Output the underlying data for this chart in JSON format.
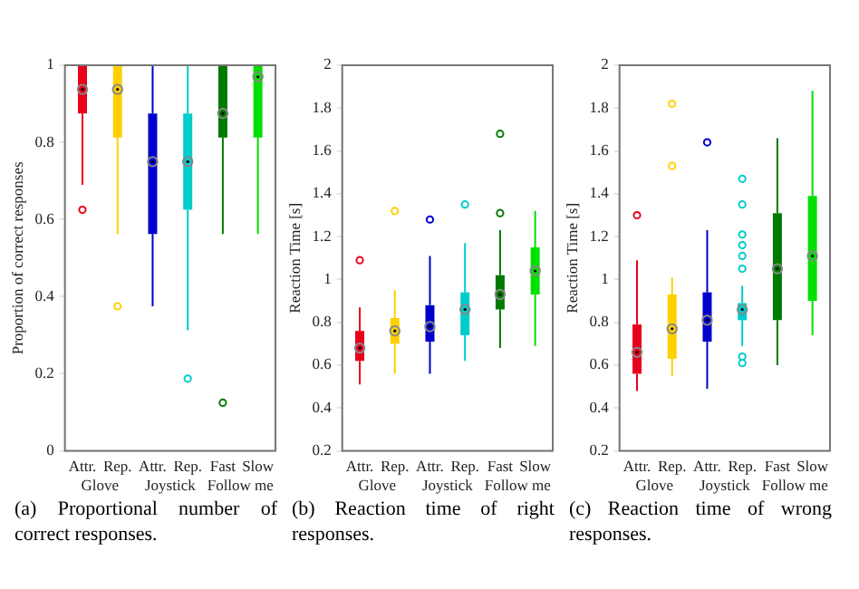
{
  "chart_data": [
    {
      "type": "box",
      "ylabel": "Proportion of correct responses",
      "categories": [
        "Attr.",
        "Rep.",
        "Attr.",
        "Rep.",
        "Fast",
        "Slow"
      ],
      "colors": [
        "#e8001c",
        "#ffd000",
        "#0000cc",
        "#00cccc",
        "#007a00",
        "#00e000"
      ],
      "ylim": [
        0,
        1
      ],
      "yticks": [
        0,
        0.2,
        0.4,
        0.6,
        0.8,
        1
      ],
      "grid": false,
      "boxes": [
        {
          "low": 0.69,
          "q1": 0.875,
          "median": 0.9375,
          "q3": 1,
          "high": 1,
          "outliers": [
            0.625
          ]
        },
        {
          "low": 0.5625,
          "q1": 0.8125,
          "median": 0.9375,
          "q3": 1,
          "high": 1,
          "outliers": [
            0.375
          ]
        },
        {
          "low": 0.375,
          "q1": 0.5625,
          "median": 0.75,
          "q3": 0.875,
          "high": 1
        },
        {
          "low": 0.3125,
          "q1": 0.625,
          "median": 0.75,
          "q3": 0.875,
          "high": 1,
          "outliers": [
            0.1875
          ]
        },
        {
          "low": 0.5625,
          "q1": 0.8125,
          "median": 0.875,
          "q3": 1,
          "high": 1,
          "outliers": [
            0.125
          ]
        },
        {
          "low": 0.5625,
          "q1": 0.8125,
          "median": 0.97,
          "q3": 1,
          "high": 1
        }
      ],
      "annotations": [
        "Glove",
        "Joystick",
        "Follow me",
        "(a) Proportional number of correct responses."
      ]
    },
    {
      "type": "box",
      "ylabel": "Reaction Time [s]",
      "categories": [
        "Attr.",
        "Rep.",
        "Attr.",
        "Rep.",
        "Fast",
        "Slow"
      ],
      "colors": [
        "#e8001c",
        "#ffd000",
        "#0000cc",
        "#00cccc",
        "#007a00",
        "#00e000"
      ],
      "ylim": [
        0.2,
        2
      ],
      "yticks": [
        0.2,
        0.4,
        0.6,
        0.8,
        1,
        1.2,
        1.4,
        1.6,
        1.8,
        2
      ],
      "grid": false,
      "boxes": [
        {
          "low": 0.51,
          "q1": 0.62,
          "median": 0.68,
          "q3": 0.76,
          "high": 0.87,
          "outliers": [
            1.09
          ]
        },
        {
          "low": 0.56,
          "q1": 0.7,
          "median": 0.76,
          "q3": 0.82,
          "high": 0.95,
          "outliers": [
            1.32
          ]
        },
        {
          "low": 0.56,
          "q1": 0.71,
          "median": 0.78,
          "q3": 0.88,
          "high": 1.11,
          "outliers": [
            1.28
          ]
        },
        {
          "low": 0.62,
          "q1": 0.74,
          "median": 0.86,
          "q3": 0.94,
          "high": 1.17,
          "outliers": [
            1.35
          ]
        },
        {
          "low": 0.68,
          "q1": 0.86,
          "median": 0.93,
          "q3": 1.02,
          "high": 1.23,
          "outliers": [
            1.31,
            1.68
          ]
        },
        {
          "low": 0.69,
          "q1": 0.93,
          "median": 1.04,
          "q3": 1.15,
          "high": 1.32
        }
      ],
      "annotations": [
        "Glove",
        "Joystick",
        "Follow me",
        "(b) Reaction time of right responses."
      ]
    },
    {
      "type": "box",
      "ylabel": "Reaction Time [s]",
      "categories": [
        "Attr.",
        "Rep.",
        "Attr.",
        "Rep.",
        "Fast",
        "Slow"
      ],
      "colors": [
        "#e8001c",
        "#ffd000",
        "#0000cc",
        "#00cccc",
        "#007a00",
        "#00e000"
      ],
      "ylim": [
        0.2,
        2
      ],
      "yticks": [
        0.2,
        0.4,
        0.6,
        0.8,
        1,
        1.2,
        1.4,
        1.6,
        1.8,
        2
      ],
      "grid": false,
      "boxes": [
        {
          "low": 0.48,
          "q1": 0.56,
          "median": 0.66,
          "q3": 0.79,
          "high": 1.09,
          "outliers": [
            1.3
          ]
        },
        {
          "low": 0.55,
          "q1": 0.63,
          "median": 0.77,
          "q3": 0.93,
          "high": 1.01,
          "outliers": [
            1.53,
            1.82
          ]
        },
        {
          "low": 0.49,
          "q1": 0.71,
          "median": 0.81,
          "q3": 0.94,
          "high": 1.23,
          "outliers": [
            1.64
          ]
        },
        {
          "low": 0.69,
          "q1": 0.81,
          "median": 0.86,
          "q3": 0.89,
          "high": 0.97,
          "outliers": [
            0.61,
            0.64,
            1.05,
            1.11,
            1.16,
            1.21,
            1.35,
            1.47
          ]
        },
        {
          "low": 0.6,
          "q1": 0.81,
          "median": 1.05,
          "q3": 1.31,
          "high": 1.66
        },
        {
          "low": 0.74,
          "q1": 0.9,
          "median": 1.11,
          "q3": 1.39,
          "high": 1.88
        }
      ],
      "annotations": [
        "Glove",
        "Joystick",
        "Follow me",
        "(c) Reaction time of wrong responses."
      ]
    }
  ]
}
